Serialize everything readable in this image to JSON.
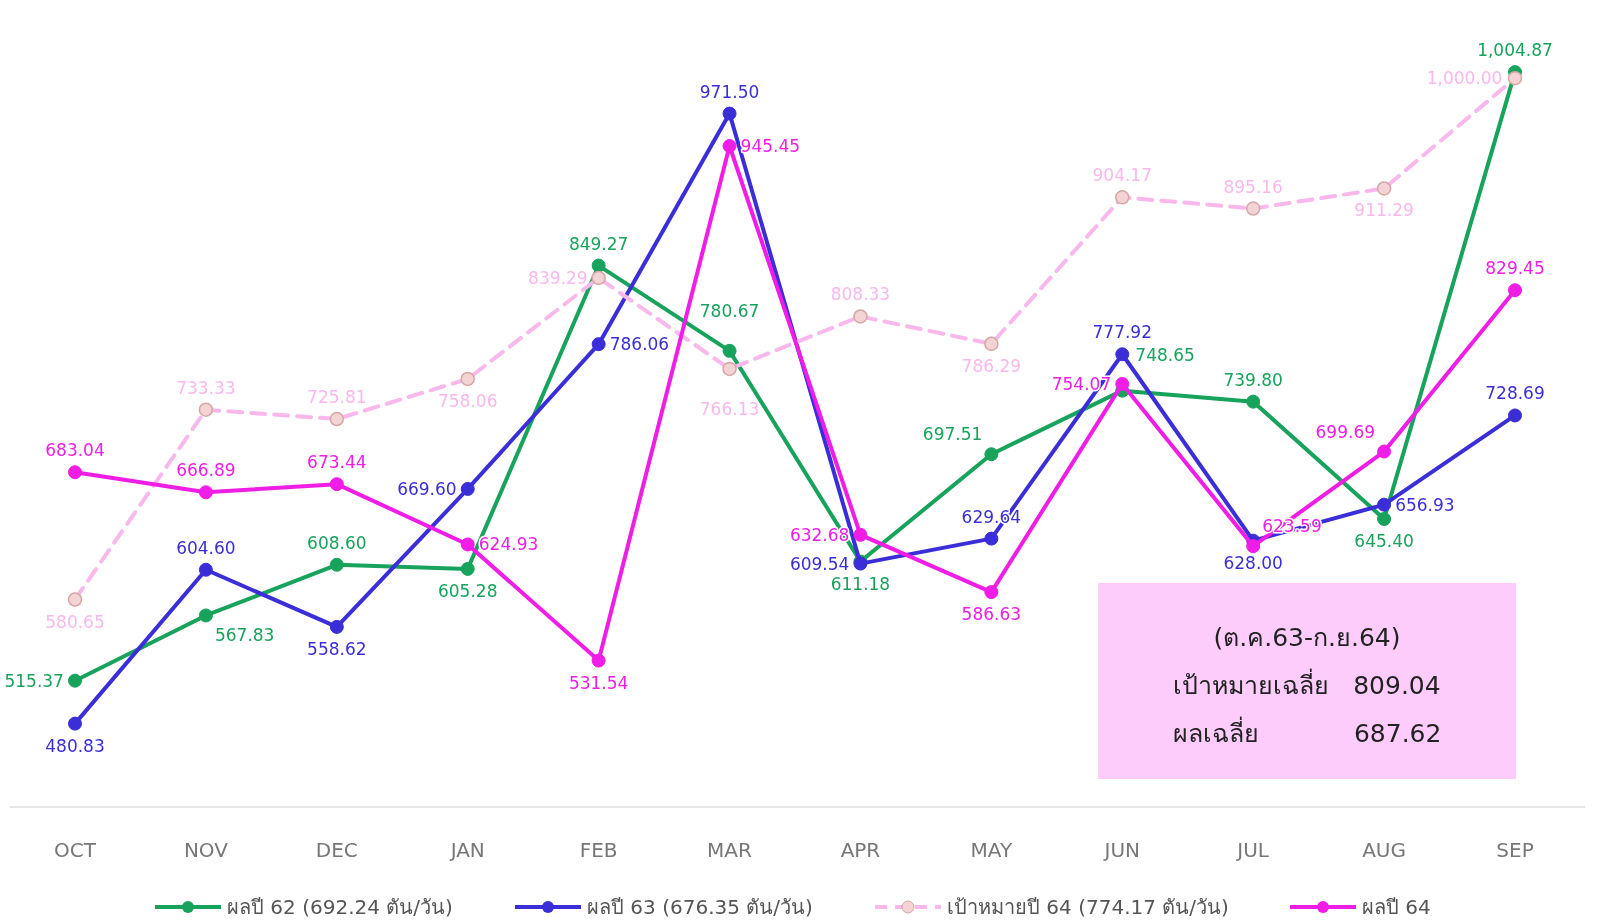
{
  "chart_data": {
    "type": "line",
    "categories": [
      "OCT",
      "NOV",
      "DEC",
      "JAN",
      "FEB",
      "MAR",
      "APR",
      "MAY",
      "JUN",
      "JUL",
      "AUG",
      "SEP"
    ],
    "tick_labels": "x",
    "legend": "bottom",
    "marker": "circle",
    "line_style": "solid",
    "series": [
      {
        "name": "ผลปี 62 (692.24 ตัน/วัน)",
        "color": "#17a35b",
        "values": [
          515.37,
          567.83,
          608.6,
          605.28,
          849.27,
          780.67,
          611.18,
          697.51,
          748.65,
          739.8,
          645.4,
          1004.87
        ],
        "value_labels": [
          "515.37",
          "567.83",
          "608.60",
          "605.28",
          "849.27",
          "780.67",
          "611.18",
          "697.51",
          "748.65",
          "739.80",
          "645.40",
          "1,004.87"
        ]
      },
      {
        "name": "ผลปี 63 (676.35 ตัน/วัน)",
        "color": "#3a2ed8",
        "values": [
          480.83,
          604.6,
          558.62,
          669.6,
          786.06,
          971.5,
          609.54,
          629.64,
          777.92,
          628.0,
          656.93,
          728.69
        ],
        "value_labels": [
          "480.83",
          "604.60",
          "558.62",
          "669.60",
          "786.06",
          "971.50",
          "609.54",
          "629.64",
          "777.92",
          "628.00",
          "656.93",
          "728.69"
        ]
      },
      {
        "name": "เป้าหมายปี 64 (774.17 ตัน/วัน)",
        "color": "#f8b8ec",
        "line_style": "dashed",
        "values": [
          580.65,
          733.33,
          725.81,
          758.06,
          839.29,
          766.13,
          808.33,
          786.29,
          904.17,
          895.16,
          911.29,
          1000.0
        ],
        "value_labels": [
          "580.65",
          "733.33",
          "725.81",
          "758.06",
          "839.29",
          "766.13",
          "808.33",
          "786.29",
          "904.17",
          "895.16",
          "911.29",
          "1,000.00"
        ]
      },
      {
        "name": "ผลปี 64",
        "color": "#f01de6",
        "values": [
          683.04,
          666.89,
          673.44,
          624.93,
          531.54,
          945.45,
          632.68,
          586.63,
          754.07,
          623.59,
          699.69,
          829.45
        ],
        "value_labels": [
          "683.04",
          "666.89",
          "673.44",
          "624.93",
          "531.54",
          "945.45",
          "632.68",
          "586.63",
          "754.07",
          "623.59",
          "699.69",
          "829.45"
        ]
      }
    ],
    "annotations": [
      "(ต.ค.63-ก.ย.64)",
      "เป้าหมายเฉลี่ย   809.04",
      "ผลเฉลี่ย            687.62"
    ]
  }
}
